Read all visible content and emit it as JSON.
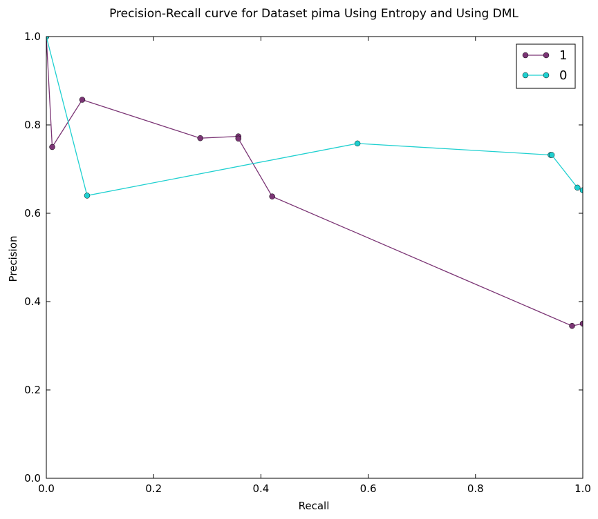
{
  "chart_data": {
    "type": "line",
    "title": "Precision-Recall curve for Dataset pima Using Entropy and Using DML",
    "xlabel": "Recall",
    "ylabel": "Precision",
    "xlim": [
      0.0,
      1.0
    ],
    "ylim": [
      0.0,
      1.0
    ],
    "xticks": [
      "0.0",
      "0.2",
      "0.4",
      "0.6",
      "0.8",
      "1.0"
    ],
    "yticks": [
      "0.0",
      "0.2",
      "0.4",
      "0.6",
      "0.8",
      "1.0"
    ],
    "grid": false,
    "legend_position": "top-right",
    "series": [
      {
        "name": "1",
        "color": "#7b3575",
        "x": [
          0.0,
          0.011,
          0.067,
          0.287,
          0.358,
          0.358,
          0.421,
          0.98,
          1.0
        ],
        "y": [
          1.0,
          0.75,
          0.857,
          0.77,
          0.774,
          0.769,
          0.638,
          0.345,
          0.35
        ]
      },
      {
        "name": "0",
        "color": "#1fd0d0",
        "x": [
          0.0,
          0.076,
          0.58,
          0.94,
          0.942,
          0.99,
          1.0
        ],
        "y": [
          1.0,
          0.64,
          0.758,
          0.732,
          0.732,
          0.658,
          0.652
        ]
      }
    ]
  }
}
